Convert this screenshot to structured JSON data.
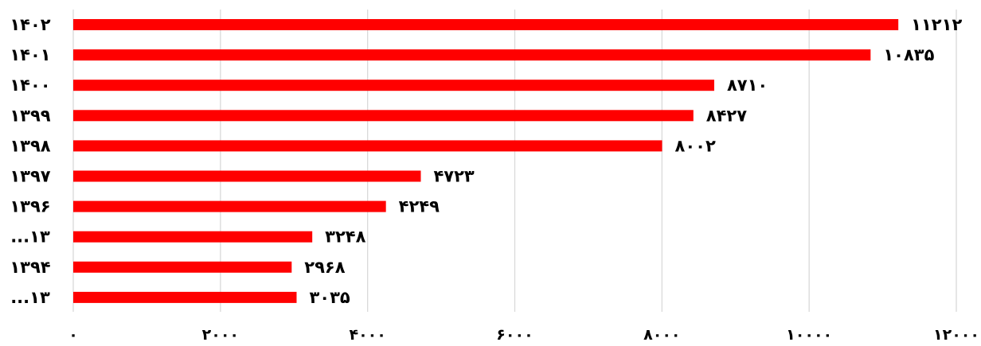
{
  "chart_data": {
    "type": "bar",
    "orientation": "horizontal",
    "title": "",
    "xlabel": "",
    "ylabel": "",
    "categories": [
      "۱۴۰۲",
      "۱۴۰۱",
      "۱۴۰۰",
      "۱۳۹۹",
      "۱۳۹۸",
      "۱۳۹۷",
      "۱۳۹۶",
      "...۱۳",
      "۱۳۹۴",
      "...۱۳"
    ],
    "values": [
      11212,
      10835,
      8710,
      8427,
      8002,
      4723,
      4249,
      3248,
      2968,
      3035
    ],
    "data_labels": [
      "۱۱۲۱۲",
      "۱۰۸۳۵",
      "۸۷۱۰",
      "۸۴۲۷",
      "۸۰۰۲",
      "۴۷۲۳",
      "۴۲۴۹",
      "۳۲۴۸",
      "۲۹۶۸",
      "۳۰۳۵"
    ],
    "xlim": [
      0,
      12000
    ],
    "x_ticks": [
      0,
      2000,
      4000,
      6000,
      8000,
      10000,
      12000
    ],
    "x_tick_labels": [
      "۰",
      "۲۰۰۰",
      "۴۰۰۰",
      "۶۰۰۰",
      "۸۰۰۰",
      "۱۰۰۰۰",
      "۱۲۰۰۰"
    ],
    "grid": true,
    "legend": "none",
    "bar_color": "#ff0000",
    "grid_color": "#d9d9d9"
  }
}
